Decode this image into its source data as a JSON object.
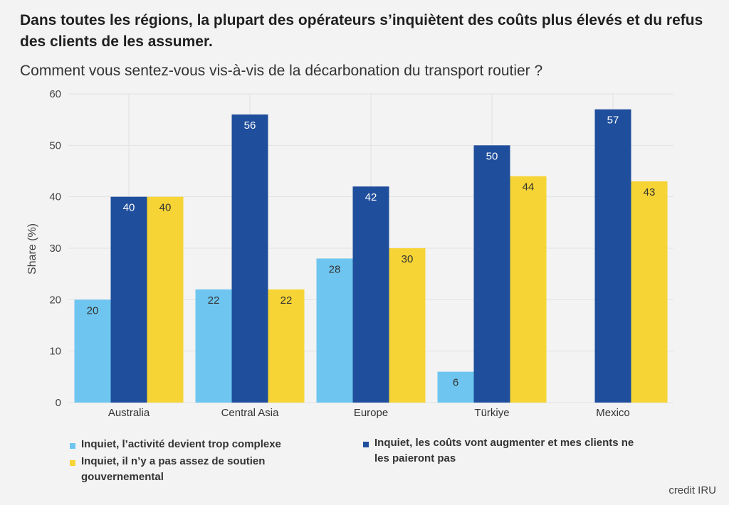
{
  "title": "Dans toutes les régions, la plupart des opérateurs s’inquiètent des coûts plus élevés et du refus des clients de les assumer.",
  "subtitle": "Comment vous sentez-vous vis-à-vis de la décarbonation du transport routier ?",
  "credit": "credit IRU",
  "chart_data": {
    "type": "bar",
    "ylabel": "Share (%)",
    "xlabel": "",
    "ylim": [
      0,
      60
    ],
    "yticks": [
      0,
      10,
      20,
      30,
      40,
      50,
      60
    ],
    "grid": true,
    "legend_position": "bottom",
    "categories": [
      "Australia",
      "Central Asia",
      "Europe",
      "Türkiye",
      "Mexico"
    ],
    "series": [
      {
        "name": "Inquiet, l’activité devient trop complexe",
        "color": "#6ec6f0",
        "values": [
          20,
          22,
          28,
          6,
          null
        ]
      },
      {
        "name": "Inquiet, les coûts vont augmenter et mes clients ne les paieront pas",
        "color": "#1f4e9c",
        "values": [
          40,
          56,
          42,
          50,
          57
        ]
      },
      {
        "name": "Inquiet, il n’y a pas assez de soutien gouvernemental",
        "color": "#f6d435",
        "values": [
          40,
          22,
          30,
          44,
          43
        ]
      }
    ],
    "legend_lines": [
      [
        "Inquiet, l’activité devient trop complexe"
      ],
      [
        "Inquiet, les coûts vont augmenter et mes clients ne",
        "les paieront pas"
      ],
      [
        "Inquiet, il n’y a pas assez de soutien",
        "gouvernemental"
      ]
    ]
  }
}
